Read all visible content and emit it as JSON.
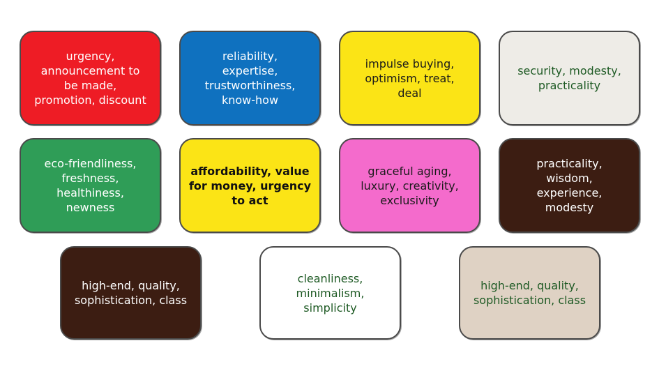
{
  "cards": [
    {
      "text": "urgency,\nannouncement to\nbe made,\npromotion, discount",
      "bg": "#ee1c25",
      "fg": "#ffffff",
      "weight": "normal"
    },
    {
      "text": "reliability,\nexpertise,\ntrustworthiness,\nknow-how",
      "bg": "#0f71bf",
      "fg": "#ffffff",
      "weight": "normal"
    },
    {
      "text": "impulse buying,\noptimism, treat,\ndeal",
      "bg": "#fbe416",
      "fg": "#1a1a1a",
      "weight": "normal"
    },
    {
      "text": "security, modesty,\npracticality",
      "bg": "#eeece7",
      "fg": "#1e5a24",
      "weight": "normal"
    },
    {
      "text": "eco-friendliness,\nfreshness,\nhealthiness,\nnewness",
      "bg": "#2f9d57",
      "fg": "#ffffff",
      "weight": "normal"
    },
    {
      "text": "affordability, value\nfor money, urgency\nto act",
      "bg": "#fbe416",
      "fg": "#111111",
      "weight": "bold"
    },
    {
      "text": "graceful aging,\nluxury, creativity,\nexclusivity",
      "bg": "#f46bcc",
      "fg": "#1a1a1a",
      "weight": "normal"
    },
    {
      "text": "practicality,\nwisdom,\nexperience,\nmodesty",
      "bg": "#3c1d12",
      "fg": "#ffffff",
      "weight": "normal"
    },
    {
      "text": "high-end, quality,\nsophistication, class",
      "bg": "#3c1d12",
      "fg": "#ffffff",
      "weight": "normal"
    },
    {
      "text": "cleanliness,\nminimalism,\nsimplicity",
      "bg": "#ffffff",
      "fg": "#1e5a24",
      "weight": "normal"
    },
    {
      "text": "high-end, quality,\nsophistication, class",
      "bg": "#dfd2c4",
      "fg": "#1e5a24",
      "weight": "normal"
    }
  ]
}
